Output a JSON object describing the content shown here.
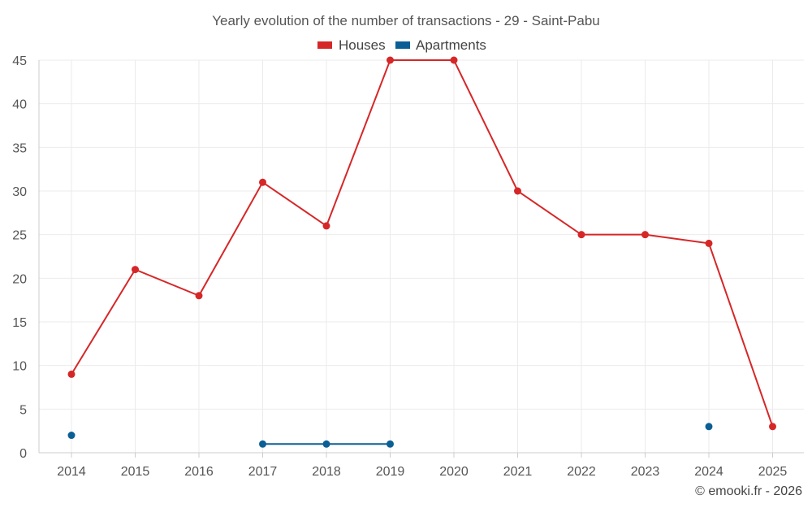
{
  "chart_data": {
    "type": "line",
    "title": "Yearly evolution of the number of transactions - 29 - Saint-Pabu",
    "xlabel": "",
    "ylabel": "",
    "categories": [
      "2014",
      "2015",
      "2016",
      "2017",
      "2018",
      "2019",
      "2020",
      "2021",
      "2022",
      "2023",
      "2024",
      "2025"
    ],
    "ylim": [
      0,
      45
    ],
    "yticks": [
      0,
      5,
      10,
      15,
      20,
      25,
      30,
      35,
      40,
      45
    ],
    "grid": true,
    "legend_position": "top-center",
    "series": [
      {
        "name": "Houses",
        "color": "#d62728",
        "values": [
          9,
          21,
          18,
          31,
          26,
          45,
          45,
          30,
          25,
          25,
          24,
          3
        ]
      },
      {
        "name": "Apartments",
        "color": "#0b5f95",
        "values": [
          2,
          null,
          null,
          1,
          1,
          1,
          null,
          null,
          null,
          null,
          3,
          null
        ]
      }
    ]
  },
  "credit": "© emooki.fr - 2026"
}
